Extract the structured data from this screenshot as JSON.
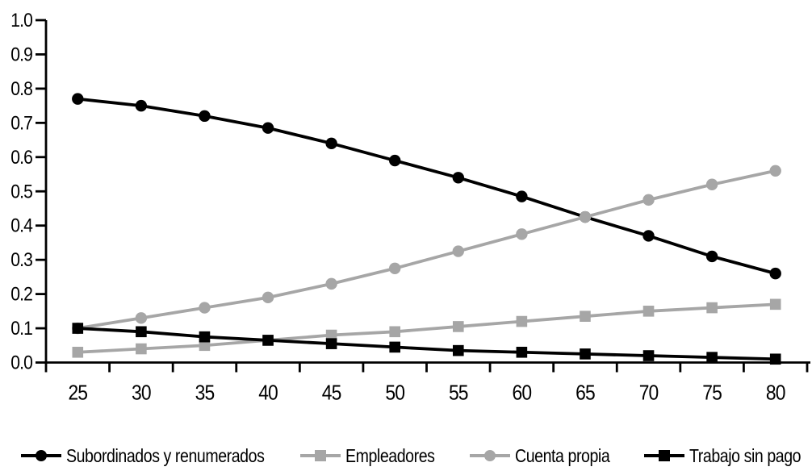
{
  "chart_data": {
    "type": "line",
    "title": "",
    "xlabel": "",
    "ylabel": "",
    "x": [
      25,
      30,
      35,
      40,
      45,
      50,
      55,
      60,
      65,
      70,
      75,
      80
    ],
    "ylim": [
      0.0,
      1.0
    ],
    "ytick_step": 0.1,
    "ytick_labels": [
      "0.0",
      "0.1",
      "0.2",
      "0.3",
      "0.4",
      "0.5",
      "0.6",
      "0.7",
      "0.8",
      "0.9",
      "1.0"
    ],
    "grid": false,
    "legend_position": "bottom",
    "axis_color": "#000000",
    "background_color": "#ffffff",
    "series": [
      {
        "name": "Subordinados y renumerados",
        "marker": "circle",
        "color": "#000000",
        "values": [
          0.77,
          0.75,
          0.72,
          0.685,
          0.64,
          0.59,
          0.54,
          0.485,
          0.425,
          0.37,
          0.31,
          0.26
        ]
      },
      {
        "name": "Empleadores",
        "marker": "square",
        "color": "#a6a6a6",
        "values": [
          0.03,
          0.04,
          0.05,
          0.065,
          0.08,
          0.09,
          0.105,
          0.12,
          0.135,
          0.15,
          0.16,
          0.17
        ]
      },
      {
        "name": "Cuenta propia",
        "marker": "circle",
        "color": "#a6a6a6",
        "values": [
          0.1,
          0.13,
          0.16,
          0.19,
          0.23,
          0.275,
          0.325,
          0.375,
          0.425,
          0.475,
          0.52,
          0.56
        ]
      },
      {
        "name": "Trabajo sin pago",
        "marker": "square",
        "color": "#000000",
        "values": [
          0.1,
          0.09,
          0.075,
          0.065,
          0.055,
          0.045,
          0.035,
          0.03,
          0.025,
          0.02,
          0.015,
          0.01
        ]
      }
    ]
  }
}
